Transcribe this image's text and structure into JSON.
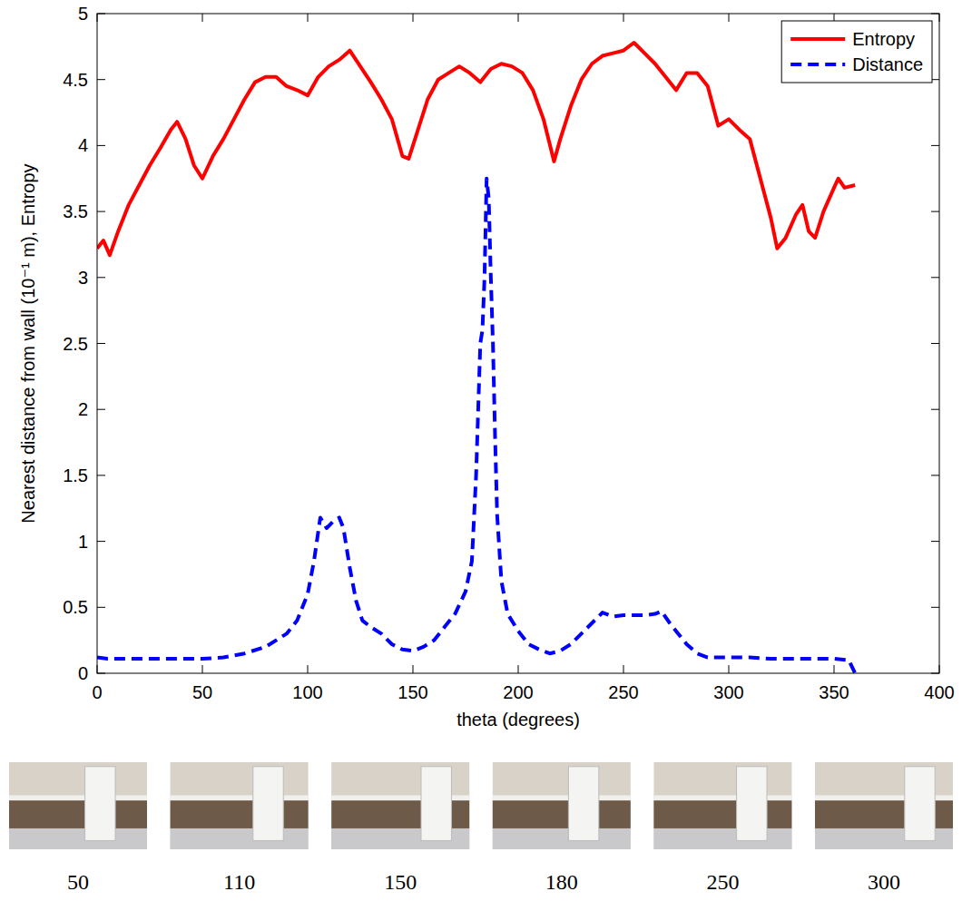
{
  "chart_data": {
    "type": "line",
    "xlabel": "theta (degrees)",
    "ylabel": "Nearest distance from wall (10⁻¹ m), Entropy",
    "xlim": [
      0,
      400
    ],
    "xticks": [
      0,
      50,
      100,
      150,
      200,
      250,
      300,
      350,
      400
    ],
    "ylim": [
      0,
      5
    ],
    "yticks": [
      0,
      0.5,
      1,
      1.5,
      2,
      2.5,
      3,
      3.5,
      4,
      4.5,
      5
    ],
    "grid": false,
    "legend": "northeast",
    "series": [
      {
        "name": "Entropy",
        "color": "#ff0000",
        "line_style": "solid",
        "x": [
          0,
          3,
          6,
          10,
          15,
          20,
          25,
          30,
          35,
          38,
          42,
          46,
          50,
          55,
          60,
          65,
          70,
          75,
          80,
          85,
          90,
          95,
          100,
          105,
          110,
          115,
          120,
          125,
          130,
          135,
          140,
          145,
          148,
          152,
          157,
          162,
          167,
          172,
          177,
          182,
          187,
          192,
          197,
          202,
          207,
          212,
          217,
          220,
          225,
          230,
          235,
          240,
          245,
          250,
          255,
          260,
          265,
          270,
          275,
          280,
          285,
          290,
          295,
          300,
          305,
          310,
          315,
          320,
          323,
          327,
          332,
          335,
          338,
          341,
          345,
          350,
          352,
          355,
          360
        ],
        "values": [
          3.22,
          3.28,
          3.17,
          3.35,
          3.55,
          3.7,
          3.85,
          3.98,
          4.12,
          4.18,
          4.05,
          3.85,
          3.75,
          3.92,
          4.05,
          4.2,
          4.35,
          4.48,
          4.52,
          4.52,
          4.45,
          4.42,
          4.38,
          4.52,
          4.6,
          4.65,
          4.72,
          4.6,
          4.48,
          4.35,
          4.2,
          3.92,
          3.9,
          4.1,
          4.35,
          4.5,
          4.55,
          4.6,
          4.55,
          4.48,
          4.58,
          4.62,
          4.6,
          4.55,
          4.42,
          4.2,
          3.88,
          4.05,
          4.3,
          4.5,
          4.62,
          4.68,
          4.7,
          4.72,
          4.78,
          4.7,
          4.62,
          4.52,
          4.42,
          4.55,
          4.55,
          4.45,
          4.15,
          4.2,
          4.12,
          4.05,
          3.75,
          3.45,
          3.22,
          3.3,
          3.48,
          3.55,
          3.35,
          3.3,
          3.5,
          3.68,
          3.75,
          3.68,
          3.7
        ]
      },
      {
        "name": "Distance",
        "color": "#0000ff",
        "line_style": "dashed",
        "x": [
          0,
          5,
          10,
          20,
          30,
          40,
          50,
          60,
          70,
          80,
          90,
          95,
          100,
          103,
          106,
          109,
          112,
          115,
          117,
          120,
          123,
          126,
          130,
          135,
          140,
          145,
          150,
          155,
          160,
          165,
          170,
          175,
          178,
          180,
          182,
          183,
          184,
          185,
          186,
          187,
          188,
          189,
          190,
          192,
          195,
          200,
          205,
          210,
          215,
          220,
          225,
          230,
          235,
          240,
          245,
          250,
          255,
          260,
          265,
          268,
          272,
          276,
          280,
          285,
          290,
          300,
          310,
          320,
          330,
          340,
          350,
          357,
          360
        ],
        "values": [
          0.12,
          0.11,
          0.11,
          0.11,
          0.11,
          0.11,
          0.11,
          0.12,
          0.15,
          0.2,
          0.3,
          0.4,
          0.6,
          0.85,
          1.18,
          1.1,
          1.15,
          1.18,
          1.1,
          0.8,
          0.55,
          0.4,
          0.35,
          0.3,
          0.22,
          0.18,
          0.17,
          0.2,
          0.25,
          0.35,
          0.45,
          0.62,
          0.85,
          1.5,
          2.5,
          2.6,
          3.0,
          3.75,
          3.6,
          3.0,
          2.5,
          1.8,
          1.2,
          0.7,
          0.45,
          0.32,
          0.22,
          0.18,
          0.15,
          0.17,
          0.22,
          0.3,
          0.38,
          0.46,
          0.43,
          0.44,
          0.44,
          0.44,
          0.45,
          0.47,
          0.38,
          0.3,
          0.22,
          0.15,
          0.12,
          0.12,
          0.12,
          0.11,
          0.11,
          0.11,
          0.11,
          0.1,
          0.0
        ]
      }
    ],
    "annotations": [
      "50",
      "110",
      "150",
      "180",
      "250",
      "300"
    ]
  }
}
